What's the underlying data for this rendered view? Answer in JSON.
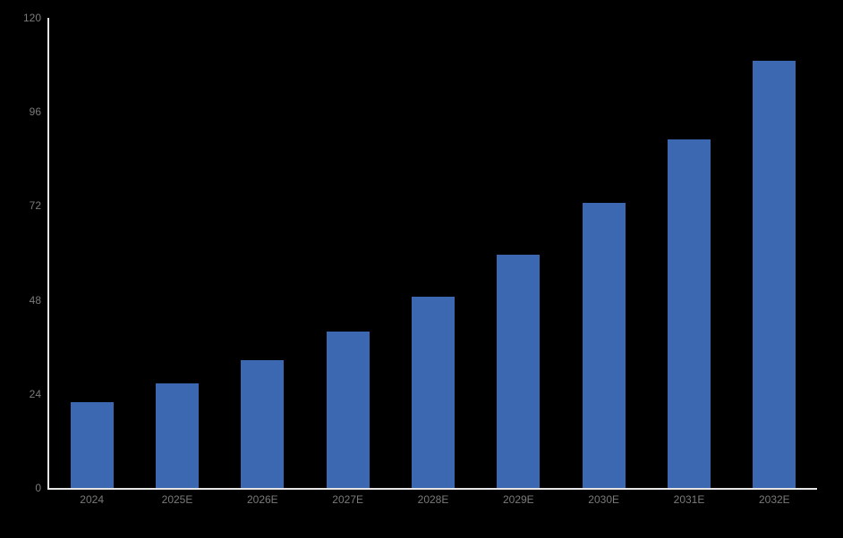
{
  "chart_data": {
    "type": "bar",
    "title": "",
    "xlabel": "",
    "ylabel": "",
    "categories": [
      "2024",
      "2025E",
      "2026E",
      "2027E",
      "2028E",
      "2029E",
      "2030E",
      "2031E",
      "2032E"
    ],
    "values": [
      22,
      26.7,
      32.6,
      40,
      48.9,
      59.5,
      72.8,
      89,
      109
    ],
    "ylim": [
      0,
      120
    ],
    "yticks": [
      0,
      24,
      48,
      72,
      96,
      120
    ],
    "grid": false,
    "legend": false,
    "bar_color": "#3C67B1",
    "background_color": "#000000",
    "axis_line_color": "#E6E6E6",
    "tick_label_color": "#7A7A7A"
  }
}
